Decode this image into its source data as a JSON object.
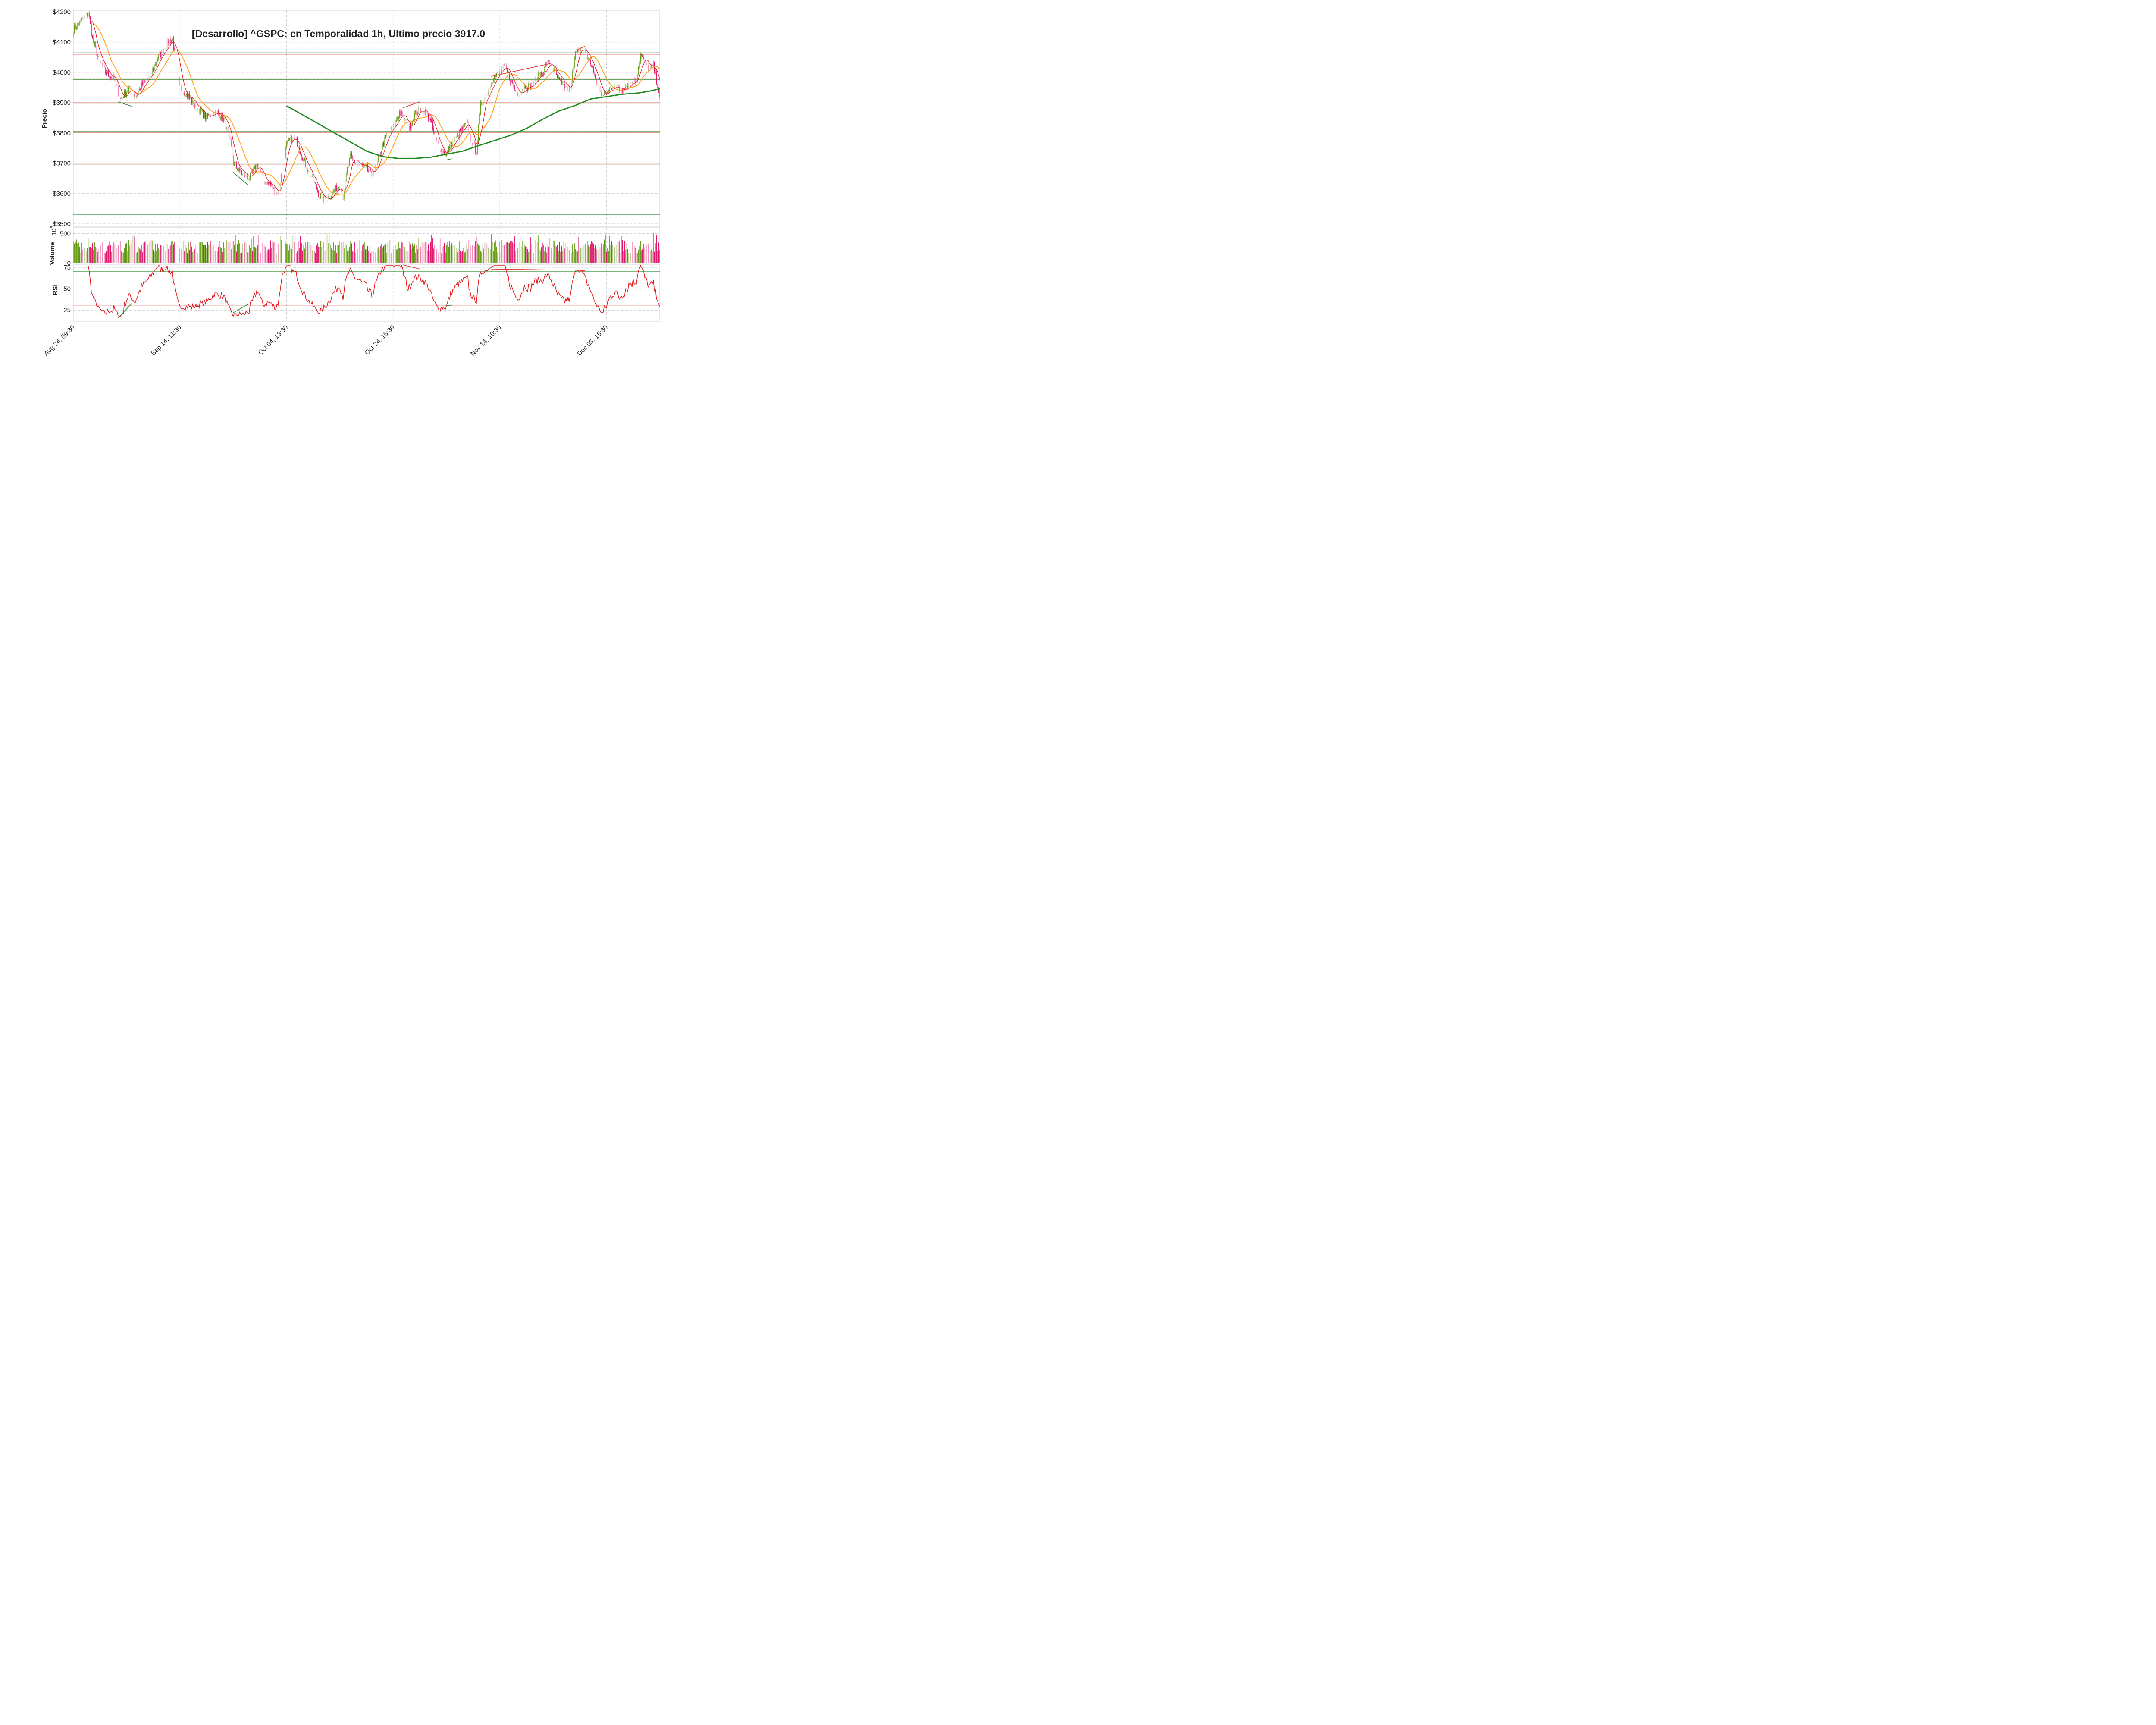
{
  "chart_data": [
    {
      "type": "candlestick",
      "title": "[Desarrollo] ^GSPC: en Temporalidad 1h, Ultimo precio 3917.0",
      "ylabel": "Precio",
      "ylim": [
        3490,
        4205
      ],
      "yticks": [
        {
          "v": 3500,
          "label": "$3500"
        },
        {
          "v": 3600,
          "label": "$3600"
        },
        {
          "v": 3700,
          "label": "$3700"
        },
        {
          "v": 3800,
          "label": "$3800"
        },
        {
          "v": 3900,
          "label": "$3900"
        },
        {
          "v": 4000,
          "label": "$4000"
        },
        {
          "v": 4100,
          "label": "$4100"
        },
        {
          "v": 4200,
          "label": "$4200"
        }
      ],
      "x_range": [
        0,
        550
      ],
      "x_ticks": [
        {
          "x": 0,
          "label": "Aug 24, 09:30"
        },
        {
          "x": 100,
          "label": "Sep 14, 11:30"
        },
        {
          "x": 200,
          "label": "Oct 04, 13:30"
        },
        {
          "x": 300,
          "label": "Oct 24, 15:30"
        },
        {
          "x": 400,
          "label": "Nov 14, 10:30"
        },
        {
          "x": 500,
          "label": "Dec 05, 15:30"
        }
      ],
      "last_price": 3917.0,
      "close_anchors": [
        [
          0,
          4140
        ],
        [
          10,
          4180
        ],
        [
          14,
          4200
        ],
        [
          18,
          4110
        ],
        [
          24,
          4040
        ],
        [
          30,
          4000
        ],
        [
          38,
          3980
        ],
        [
          44,
          3910
        ],
        [
          52,
          3950
        ],
        [
          58,
          3920
        ],
        [
          65,
          3960
        ],
        [
          72,
          3990
        ],
        [
          78,
          4040
        ],
        [
          82,
          4060
        ],
        [
          88,
          4100
        ],
        [
          93,
          4110
        ],
        [
          96,
          4040
        ],
        [
          100,
          3950
        ],
        [
          108,
          3920
        ],
        [
          114,
          3890
        ],
        [
          120,
          3870
        ],
        [
          125,
          3850
        ],
        [
          132,
          3870
        ],
        [
          138,
          3860
        ],
        [
          142,
          3840
        ],
        [
          146,
          3780
        ],
        [
          148,
          3750
        ],
        [
          150,
          3700
        ],
        [
          155,
          3680
        ],
        [
          160,
          3660
        ],
        [
          165,
          3650
        ],
        [
          170,
          3680
        ],
        [
          173,
          3700
        ],
        [
          178,
          3640
        ],
        [
          185,
          3630
        ],
        [
          190,
          3600
        ],
        [
          193,
          3610
        ],
        [
          196,
          3700
        ],
        [
          200,
          3760
        ],
        [
          205,
          3780
        ],
        [
          210,
          3770
        ],
        [
          215,
          3720
        ],
        [
          220,
          3680
        ],
        [
          225,
          3640
        ],
        [
          230,
          3600
        ],
        [
          235,
          3580
        ],
        [
          240,
          3590
        ],
        [
          245,
          3610
        ],
        [
          250,
          3630
        ],
        [
          253,
          3590
        ],
        [
          257,
          3680
        ],
        [
          260,
          3720
        ],
        [
          265,
          3700
        ],
        [
          270,
          3690
        ],
        [
          275,
          3680
        ],
        [
          280,
          3660
        ],
        [
          285,
          3700
        ],
        [
          290,
          3760
        ],
        [
          295,
          3800
        ],
        [
          300,
          3820
        ],
        [
          306,
          3870
        ],
        [
          310,
          3850
        ],
        [
          314,
          3810
        ],
        [
          320,
          3860
        ],
        [
          325,
          3880
        ],
        [
          330,
          3870
        ],
        [
          334,
          3850
        ],
        [
          338,
          3800
        ],
        [
          342,
          3760
        ],
        [
          346,
          3740
        ],
        [
          350,
          3730
        ],
        [
          354,
          3760
        ],
        [
          358,
          3780
        ],
        [
          362,
          3800
        ],
        [
          366,
          3820
        ],
        [
          370,
          3830
        ],
        [
          372,
          3790
        ],
        [
          375,
          3760
        ],
        [
          378,
          3740
        ],
        [
          382,
          3890
        ],
        [
          386,
          3920
        ],
        [
          390,
          3950
        ],
        [
          393,
          3980
        ],
        [
          397,
          3990
        ],
        [
          400,
          4000
        ],
        [
          404,
          4020
        ],
        [
          408,
          3990
        ],
        [
          412,
          3960
        ],
        [
          416,
          3930
        ],
        [
          420,
          3940
        ],
        [
          424,
          3960
        ],
        [
          428,
          3950
        ],
        [
          432,
          3970
        ],
        [
          436,
          3990
        ],
        [
          440,
          4000
        ],
        [
          444,
          4030
        ],
        [
          447,
          4030
        ],
        [
          450,
          4010
        ],
        [
          454,
          3980
        ],
        [
          458,
          3960
        ],
        [
          462,
          3950
        ],
        [
          466,
          3940
        ],
        [
          469,
          4020
        ],
        [
          472,
          4080
        ],
        [
          476,
          4080
        ],
        [
          480,
          4060
        ],
        [
          484,
          4040
        ],
        [
          488,
          4000
        ],
        [
          492,
          3960
        ],
        [
          496,
          3920
        ],
        [
          500,
          3930
        ],
        [
          504,
          3950
        ],
        [
          508,
          3960
        ],
        [
          512,
          3940
        ],
        [
          516,
          3950
        ],
        [
          520,
          3960
        ],
        [
          524,
          3970
        ],
        [
          528,
          3980
        ],
        [
          532,
          4060
        ],
        [
          536,
          4030
        ],
        [
          540,
          4010
        ],
        [
          544,
          4020
        ],
        [
          548,
          3960
        ],
        [
          550,
          3917
        ]
      ],
      "sma200": [
        [
          200,
          3890
        ],
        [
          220,
          3850
        ],
        [
          240,
          3810
        ],
        [
          260,
          3770
        ],
        [
          275,
          3740
        ],
        [
          290,
          3722
        ],
        [
          305,
          3716
        ],
        [
          320,
          3716
        ],
        [
          335,
          3720
        ],
        [
          350,
          3730
        ],
        [
          365,
          3740
        ],
        [
          380,
          3758
        ],
        [
          395,
          3775
        ],
        [
          410,
          3792
        ],
        [
          425,
          3815
        ],
        [
          440,
          3845
        ],
        [
          455,
          3872
        ],
        [
          470,
          3890
        ],
        [
          485,
          3912
        ],
        [
          500,
          3920
        ],
        [
          515,
          3928
        ],
        [
          530,
          3932
        ],
        [
          540,
          3938
        ],
        [
          550,
          3946
        ]
      ],
      "horizontal_levels": [
        {
          "value": 4200,
          "color": "#e53935"
        },
        {
          "value": 4065,
          "color": "#2e8b2e"
        },
        {
          "value": 4060,
          "color": "#e53935"
        },
        {
          "value": 3978,
          "color": "#e53935"
        },
        {
          "value": 3976,
          "color": "#2e8b2e"
        },
        {
          "value": 3900,
          "color": "#e53935"
        },
        {
          "value": 3898,
          "color": "#2e8b2e"
        },
        {
          "value": 3806,
          "color": "#2e8b2e"
        },
        {
          "value": 3802,
          "color": "#e53935"
        },
        {
          "value": 3700,
          "color": "#2e8b2e"
        },
        {
          "value": 3697,
          "color": "#e53935"
        },
        {
          "value": 3530,
          "color": "#2e8b2e"
        }
      ],
      "divergence_lines": [
        {
          "color": "#2e8b2e",
          "points": [
            [
              42,
              3903
            ],
            [
              55,
              3888
            ]
          ]
        },
        {
          "color": "#2e8b2e",
          "points": [
            [
              150,
              3670
            ],
            [
              164,
              3628
            ]
          ]
        },
        {
          "color": "#e53935",
          "points": [
            [
              309,
              3883
            ],
            [
              325,
              3903
            ]
          ]
        },
        {
          "color": "#2e8b2e",
          "points": [
            [
              349,
              3710
            ],
            [
              355,
              3715
            ]
          ]
        },
        {
          "color": "#e53935",
          "points": [
            [
              392,
              3987
            ],
            [
              448,
              4030
            ]
          ]
        },
        {
          "color": "#e53935",
          "points": [
            [
              473,
              4075
            ],
            [
              480,
              4087
            ]
          ]
        }
      ],
      "colors": {
        "up": "#6a9e1a",
        "down": "#e0196e",
        "sma_fast": "#e31a1c",
        "sma_mid": "#ffa010",
        "sma200": "#1f8a1f",
        "level_green": "#2e8b2e",
        "level_red": "#e53935"
      }
    },
    {
      "type": "bar",
      "ylabel": "Volume",
      "scale_label": "1e6",
      "ylim": [
        0,
        600
      ],
      "yticks": [
        {
          "v": 0,
          "label": "0"
        },
        {
          "v": 500,
          "label": "500"
        }
      ]
    },
    {
      "type": "line",
      "ylabel": "RSI",
      "ylim": [
        12,
        78
      ],
      "yticks": [
        {
          "v": 25,
          "label": "25"
        },
        {
          "v": 50,
          "label": "50"
        },
        {
          "v": 75,
          "label": "75"
        }
      ],
      "levels": [
        {
          "value": 70,
          "color": "#2e8b2e"
        },
        {
          "value": 30,
          "color": "#e53935"
        }
      ],
      "divergence_lines": [
        {
          "color": "#2e8b2e",
          "points": [
            [
              42,
              16
            ],
            [
              55,
              33
            ]
          ]
        },
        {
          "color": "#2e8b2e",
          "points": [
            [
              150,
              22
            ],
            [
              164,
              32
            ]
          ]
        },
        {
          "color": "#e53935",
          "points": [
            [
              309,
              78
            ],
            [
              325,
              73
            ]
          ]
        },
        {
          "color": "#2e8b2e",
          "points": [
            [
              349,
              30
            ],
            [
              355,
              31
            ]
          ]
        },
        {
          "color": "#e53935",
          "points": [
            [
              392,
              73
            ],
            [
              448,
              72
            ]
          ]
        },
        {
          "color": "#e53935",
          "points": [
            [
              473,
              72
            ],
            [
              480,
              71
            ]
          ]
        }
      ]
    }
  ]
}
